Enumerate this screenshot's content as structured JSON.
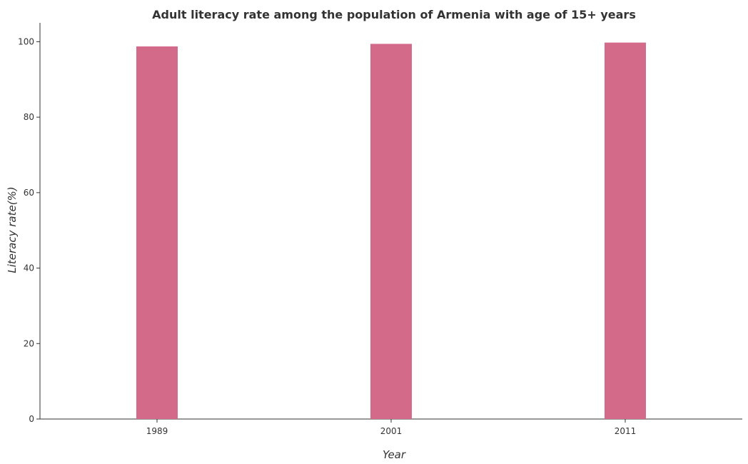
{
  "chart_data": {
    "type": "bar",
    "title": "Adult literacy rate among the population of Armenia with age of 15+ years",
    "xlabel": "Year",
    "ylabel": "Literacy rate(%)",
    "categories": [
      "1989",
      "2001",
      "2011"
    ],
    "values": [
      98.75,
      99.43,
      99.77
    ],
    "ylim": [
      0,
      105
    ],
    "yticks": [
      0,
      20,
      40,
      60,
      80,
      100
    ],
    "ytick_labels": [
      "0",
      "20",
      "40",
      "60",
      "80",
      "100"
    ],
    "bar_color": "#d46a8a",
    "grid": false,
    "legend": "none"
  }
}
